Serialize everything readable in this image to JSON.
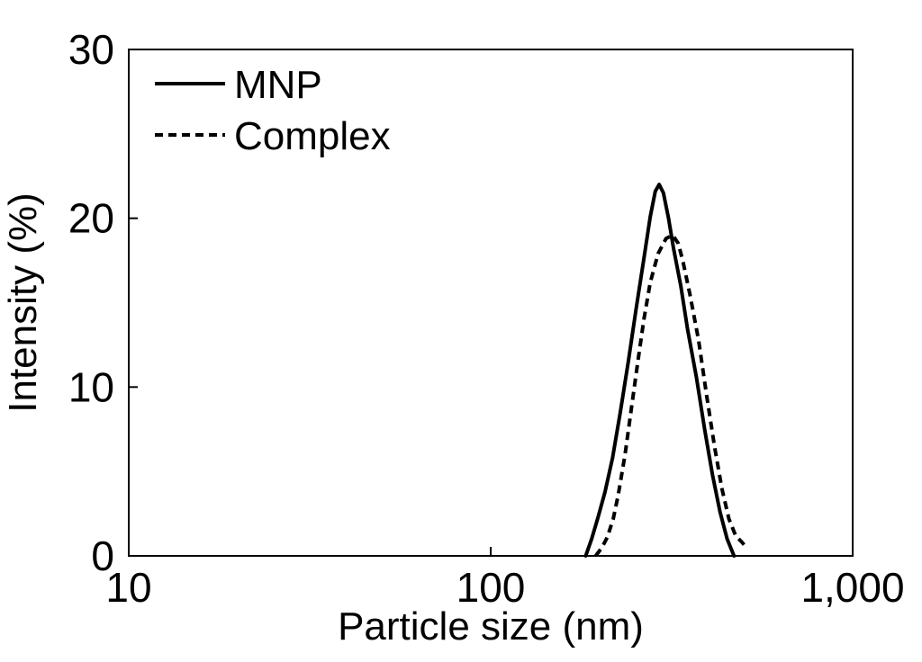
{
  "chart_data": {
    "type": "line",
    "title": "",
    "xlabel": "Particle size (nm)",
    "ylabel": "Intensity (%)",
    "x_scale": "log",
    "xlim": [
      10,
      1000
    ],
    "ylim": [
      0,
      30
    ],
    "x_ticks": [
      10,
      100,
      1000
    ],
    "x_tick_labels": [
      "10",
      "100",
      "1,000"
    ],
    "y_ticks": [
      0,
      10,
      20,
      30
    ],
    "y_tick_labels": [
      "0",
      "10",
      "20",
      "30"
    ],
    "grid": false,
    "legend_position": "top-left",
    "series": [
      {
        "name": "MNP",
        "line_style": "solid",
        "color": "#000000",
        "points": [
          [
            183,
            0
          ],
          [
            190,
            1
          ],
          [
            198,
            2.3
          ],
          [
            207,
            3.8
          ],
          [
            217,
            5.8
          ],
          [
            228,
            8.5
          ],
          [
            240,
            11.5
          ],
          [
            252,
            14.6
          ],
          [
            265,
            17.6
          ],
          [
            276,
            20.1
          ],
          [
            285,
            21.6
          ],
          [
            292,
            22
          ],
          [
            300,
            21.5
          ],
          [
            310,
            20
          ],
          [
            320,
            18.2
          ],
          [
            335,
            16
          ],
          [
            350,
            13.4
          ],
          [
            370,
            10.6
          ],
          [
            390,
            7.5
          ],
          [
            410,
            4.8
          ],
          [
            430,
            2.6
          ],
          [
            450,
            1
          ],
          [
            470,
            0
          ]
        ]
      },
      {
        "name": "Complex",
        "line_style": "dashed",
        "color": "#000000",
        "points": [
          [
            195,
            0
          ],
          [
            203,
            0.5
          ],
          [
            210,
            1.1
          ],
          [
            218,
            2.2
          ],
          [
            225,
            3.6
          ],
          [
            235,
            6
          ],
          [
            245,
            8.8
          ],
          [
            255,
            11.5
          ],
          [
            265,
            14
          ],
          [
            276,
            16.2
          ],
          [
            290,
            17.9
          ],
          [
            305,
            18.8
          ],
          [
            318,
            19
          ],
          [
            330,
            18.5
          ],
          [
            340,
            17.4
          ],
          [
            355,
            15.5
          ],
          [
            375,
            12.8
          ],
          [
            395,
            9.5
          ],
          [
            415,
            6.5
          ],
          [
            435,
            4
          ],
          [
            455,
            2.2
          ],
          [
            475,
            1.2
          ],
          [
            495,
            0.8
          ],
          [
            508,
            0.5
          ]
        ]
      }
    ]
  }
}
